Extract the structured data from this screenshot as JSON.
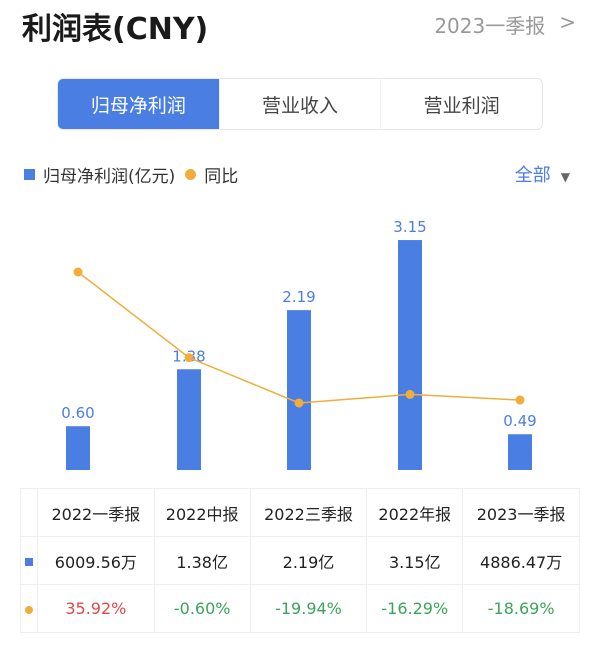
{
  "header": {
    "title": "利润表(CNY)",
    "period": "2023一季报",
    "chevron": ">"
  },
  "tabs": [
    {
      "label": "归母净利润",
      "active": true
    },
    {
      "label": "营业收入"
    },
    {
      "label": "营业利润"
    }
  ],
  "legend": {
    "bar": "归母净利润(亿元)",
    "line": "同比"
  },
  "filter": {
    "label": "全部",
    "arrow": "▼"
  },
  "colors": {
    "bar": "#4a7ee3",
    "line": "#f0ad3c",
    "up": "#e04848",
    "down": "#3aa55a"
  },
  "chart_data": {
    "type": "bar+line",
    "categories": [
      "2022一季报",
      "2022中报",
      "2022三季报",
      "2022年报",
      "2023一季报"
    ],
    "series": [
      {
        "name": "归母净利润(亿元)",
        "type": "bar",
        "values": [
          0.6,
          1.38,
          2.19,
          3.15,
          0.49
        ],
        "labels": [
          "0.60",
          "1.38",
          "2.19",
          "3.15",
          "0.49"
        ]
      },
      {
        "name": "同比",
        "type": "line",
        "values": [
          35.92,
          -0.6,
          -19.94,
          -16.29,
          -18.69
        ]
      }
    ]
  },
  "table": {
    "headers": [
      "2022一季报",
      "2022中报",
      "2022三季报",
      "2022年报",
      "2023一季报"
    ],
    "profit": [
      "6009.56万",
      "1.38亿",
      "2.19亿",
      "3.15亿",
      "4886.47万"
    ],
    "yoy": [
      "35.92%",
      "-0.60%",
      "-19.94%",
      "-16.29%",
      "-18.69%"
    ]
  }
}
